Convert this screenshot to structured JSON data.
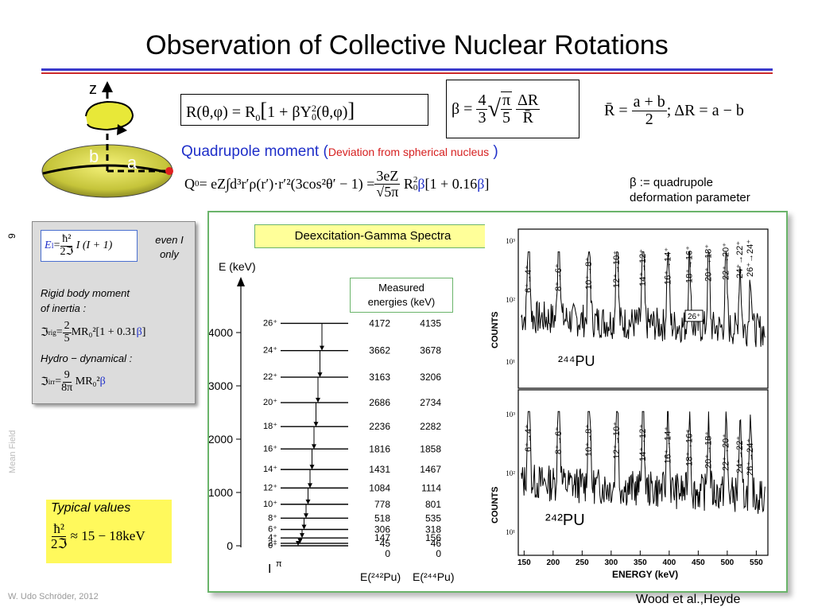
{
  "title": "Observation of Collective Nuclear Rotations",
  "nucleus_labels": {
    "z": "z",
    "b": "b",
    "a": "a"
  },
  "formulas": {
    "radius_R": "R(θ,φ) = R",
    "radius_R_sub": "0",
    "radius_bracket": "1 + βY",
    "radius_Y_sup": "2",
    "radius_Y_sub": "0",
    "radius_args": "(θ,φ)",
    "beta_lhs": "β =",
    "beta_frac_num": "4",
    "beta_frac_den": "3",
    "beta_sqrt_num": "π",
    "beta_sqrt_den": "5",
    "beta_dR_num": "ΔR",
    "beta_dR_den": "R̄",
    "rbar_lhs": "R̄ =",
    "rbar_num": "a + b",
    "rbar_den": "2",
    "dR_text": "; ΔR = a − b",
    "quad_heading": "Quadrupole moment (",
    "quad_heading_sub": "Deviation from spherical nucleus",
    "quad_heading_end": " )",
    "q0_lhs": "Q",
    "q0_lhs_sub": "0",
    "q0_integral": " = eZ∫d³r′ρ(r′)·r′²(3cos²θ′ − 1) = ",
    "q0_frac_num": "3eZ",
    "q0_frac_den": "√5π",
    "q0_rhs": "R",
    "q0_rhs_sup": "2",
    "q0_rhs_sub": "0",
    "q0_beta": "β",
    "q0_bracket": "[1 + 0.16",
    "q0_bracket_beta": "β",
    "q0_bracket_end": "]",
    "beta_def_line1": "β := quadrupole",
    "beta_def_line2": "deformation parameter"
  },
  "side_box": {
    "energy_formula_lhs": "E",
    "energy_formula_lhs_sub": "I",
    "energy_formula_eq": " = ",
    "energy_formula_num": "ħ²",
    "energy_formula_den": "2ℑ",
    "energy_formula_tail": "I (I + 1)",
    "even_line1": "even I",
    "even_line2": "only",
    "rigid_line1": "Rigid body moment",
    "rigid_line2": "of inertia :",
    "rig_formula_lhs": "ℑ",
    "rig_formula_lhs_sub": "rig",
    "rig_formula_eq": " = ",
    "rig_num": "2",
    "rig_den": "5",
    "rig_tail": "MR₀²[1 + 0.31",
    "rig_tail_beta": "β",
    "rig_tail_end": "]",
    "hydro_line": "Hydro − dynamical :",
    "irr_formula_lhs": "ℑ",
    "irr_formula_lhs_sub": "irr",
    "irr_formula_eq": " = ",
    "irr_num": "9",
    "irr_den": "8π",
    "irr_tail": "MR₀²",
    "irr_tail_beta": "β"
  },
  "typical": {
    "heading": "Typical values",
    "num": "ħ²",
    "den": "2ℑ",
    "tail": "≈ 15 − 18keV"
  },
  "panel": {
    "gamma_label": "Deexcitation-Gamma Spectra",
    "measured_line1": "Measured",
    "measured_line2": "energies (keV)",
    "ylabel": "E (keV)",
    "yticks": [
      "4000",
      "3000",
      "2000",
      "1000",
      "0"
    ],
    "col1_header": "E(²⁴²Pu)",
    "col2_header": "E(²⁴⁴Pu)",
    "ipi_label": "I",
    "ipi_sup": "π"
  },
  "level_scheme": {
    "levels": [
      {
        "spin": "26⁺",
        "e242": "4172",
        "e244": "4135"
      },
      {
        "spin": "24⁺",
        "e242": "3662",
        "e244": "3678"
      },
      {
        "spin": "22⁺",
        "e242": "3163",
        "e244": "3206"
      },
      {
        "spin": "20⁺",
        "e242": "2686",
        "e244": "2734"
      },
      {
        "spin": "18⁺",
        "e242": "2236",
        "e244": "2282"
      },
      {
        "spin": "16⁺",
        "e242": "1816",
        "e244": "1858"
      },
      {
        "spin": "14⁺",
        "e242": "1431",
        "e244": "1467"
      },
      {
        "spin": "12⁺",
        "e242": "1084",
        "e244": "1114"
      },
      {
        "spin": "10⁺",
        "e242": "778",
        "e244": "801"
      },
      {
        "spin": "8⁺",
        "e242": "518",
        "e244": "535"
      },
      {
        "spin": "6⁺",
        "e242": "306",
        "e244": "318"
      },
      {
        "spin": "4⁺",
        "e242": "147",
        "e244": "156"
      },
      {
        "spin": "2⁺",
        "e242": "45",
        "e244": "46"
      },
      {
        "spin": "0⁺",
        "e242": "0",
        "e244": "0"
      }
    ]
  },
  "spectra": {
    "counts_label": "COUNTS",
    "energy_label": "ENERGY (keV)",
    "xticks": [
      "150",
      "200",
      "250",
      "300",
      "350",
      "400",
      "450",
      "500",
      "550"
    ],
    "top_nucleus": "²⁴⁴PU",
    "bottom_nucleus": "²⁴²PU",
    "top_yticks": [
      "10³",
      "10²",
      "10¹"
    ],
    "bottom_yticks": [
      "10³",
      "10²",
      "10¹"
    ],
    "top_peaks": [
      "6⁺→4⁺",
      "8⁺→6⁺",
      "10⁺→8⁺",
      "12⁺→10⁺",
      "14⁺→12⁺",
      "16⁺→14⁺",
      "18⁺→16⁺",
      "20⁺→18⁺",
      "22⁺→20⁺",
      "24⁺→22⁺",
      "26⁺→24⁺"
    ],
    "bottom_peaks": [
      "6⁺→4⁺",
      "8⁺→6⁺",
      "10⁺→8⁺",
      "12⁺→10⁺",
      "14⁺→12⁺",
      "16⁺→14⁺",
      "18⁺→16⁺",
      "20⁺→18⁺",
      "22⁺→20⁺",
      "24⁺→22⁺",
      "26⁺→24⁺"
    ],
    "top_box_label": "26⁺"
  },
  "footer": "W. Udo Schröder, 2012",
  "page_number": "9",
  "vertical_label": "Mean Field",
  "citation": "Wood et al.,Heyde",
  "colors": {
    "accent_blue": "#1f2fc9",
    "accent_red": "#d62020",
    "panel_border": "#6ab46a",
    "highlight_yellow": "#fff95c"
  }
}
